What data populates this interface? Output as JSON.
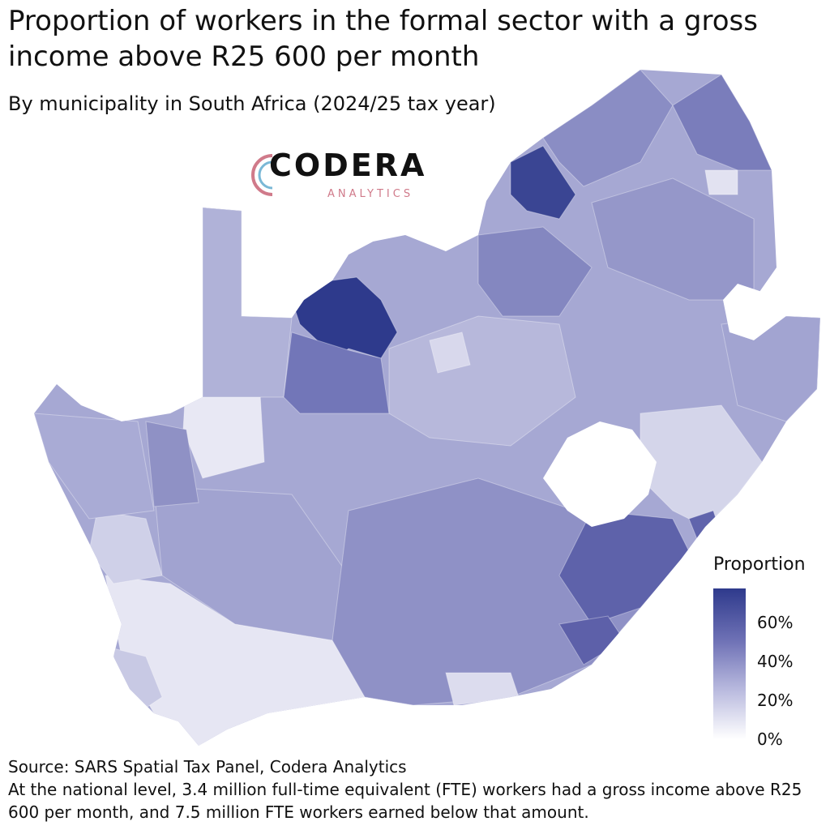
{
  "title": "Proportion of workers in the formal sector with a gross income above R25 600 per month",
  "subtitle": "By municipality in South Africa (2024/25 tax year)",
  "logo": {
    "name": "CODERA",
    "tagline": "ANALYTICS"
  },
  "legend": {
    "title": "Proportion",
    "ticks": [
      "60%",
      "40%",
      "20%",
      "0%"
    ],
    "scale": {
      "min": 0,
      "max": 0.75,
      "low_color": "#ffffff",
      "high_color": "#2e3a8c"
    }
  },
  "source": "Source: SARS Spatial Tax Panel, Codera Analytics",
  "note": "At the national level, 3.4 million full-time equivalent (FTE) workers had a gross income above R25 600 per month, and 7.5 million FTE workers earned below that amount.",
  "colors": {
    "very_high": "#2e3a8c",
    "high": "#5f63ab",
    "mid_high": "#7d80bd",
    "mid": "#9c9ecd",
    "mid_low": "#b6b7da",
    "low": "#d4d5ea",
    "very_low": "#eeeef7",
    "water": "#ffffff"
  }
}
